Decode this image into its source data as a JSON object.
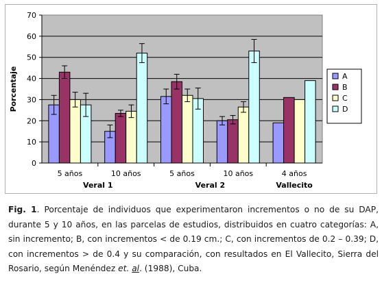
{
  "chart_data": {
    "type": "bar",
    "ylabel": "Porcentaje",
    "ylim": [
      0,
      70
    ],
    "yticks": [
      0,
      10,
      20,
      30,
      40,
      50,
      60,
      70
    ],
    "grid": true,
    "legend_position": "right",
    "series": [
      {
        "name": "A",
        "color": "#9999ff"
      },
      {
        "name": "B",
        "color": "#993366"
      },
      {
        "name": "C",
        "color": "#ffffcc"
      },
      {
        "name": "D",
        "color": "#ccffff"
      }
    ],
    "groups": [
      {
        "label": "5 años",
        "parent": "Veral 1",
        "values": [
          27.5,
          43,
          30,
          27.5
        ],
        "errors": [
          4.5,
          3,
          3.5,
          5.5
        ]
      },
      {
        "label": "10 años",
        "parent": "Veral 1",
        "values": [
          15,
          23.5,
          24.5,
          52
        ],
        "errors": [
          3,
          1.5,
          3,
          4.5
        ]
      },
      {
        "label": "5 años",
        "parent": "Veral 2",
        "values": [
          31.5,
          38.5,
          32,
          30.5
        ],
        "errors": [
          3.5,
          3.5,
          3,
          5
        ]
      },
      {
        "label": "10 años",
        "parent": "Veral 2",
        "values": [
          20,
          20.5,
          26.5,
          53
        ],
        "errors": [
          2,
          2,
          2.5,
          5.5
        ]
      },
      {
        "label": "4 años",
        "parent": "Vallecito",
        "values": [
          19,
          31,
          30,
          39
        ],
        "errors": [
          null,
          null,
          null,
          null
        ]
      }
    ],
    "parents": [
      "Veral 1",
      "Veral 2",
      "Vallecito"
    ]
  },
  "caption": {
    "fig_label": "Fig. 1",
    "text_part1": ". Porcentaje de individuos que experimentaron incrementos o no de su DAP, durante 5 y 10 años, en las parcelas de estudios, distribuidos en cuatro categorías: A, sin incremento; B, con incrementos < de 0.19 cm.; C, con incrementos de 0.2 – 0.39; D, con incrementos > de 0.4 y su comparación, con resultados en El Vallecito, Sierra del Rosario, según Menéndez ",
    "et": "et.",
    "al": "al",
    "text_part2": ". (1988), Cuba."
  }
}
